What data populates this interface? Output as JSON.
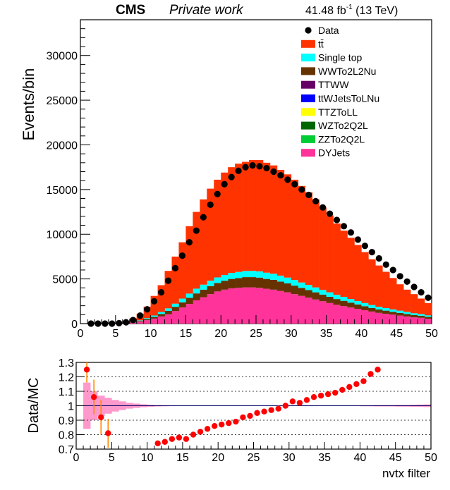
{
  "header": {
    "experiment": "CMS",
    "label": "Private work",
    "lumi_main": "41.48 fb",
    "lumi_exp": "-1",
    "lumi_energy": " (13 TeV)"
  },
  "chart_data": [
    {
      "type": "stacked-histogram",
      "ylabel": "Events/bin",
      "xlim": [
        0,
        50
      ],
      "ylim": [
        0,
        34000
      ],
      "x_ticks": [
        0,
        5,
        10,
        15,
        20,
        25,
        30,
        35,
        40,
        45,
        50
      ],
      "y_ticks": [
        0,
        5000,
        10000,
        15000,
        20000,
        25000,
        30000
      ],
      "legend": {
        "placement": "top-right",
        "entries": [
          {
            "label": "Data",
            "color": "#000000",
            "marker": "dot"
          },
          {
            "label": "tt̄",
            "color": "#ff3300",
            "marker": "box"
          },
          {
            "label": "Single top",
            "color": "#00ffff",
            "marker": "box"
          },
          {
            "label": "WWTo2L2Nu",
            "color": "#663300",
            "marker": "box"
          },
          {
            "label": "TTWW",
            "color": "#660066",
            "marker": "box"
          },
          {
            "label": "ttWJetsToLNu",
            "color": "#0000ff",
            "marker": "box"
          },
          {
            "label": "TTZToLL",
            "color": "#ffff00",
            "marker": "box"
          },
          {
            "label": "WZTo2Q2L",
            "color": "#006600",
            "marker": "box"
          },
          {
            "label": "ZZTo2Q2L",
            "color": "#00cc33",
            "marker": "box"
          },
          {
            "label": "DYJets",
            "color": "#ff3399",
            "marker": "box"
          }
        ]
      },
      "bin_edges": [
        0,
        50
      ],
      "bin_width": 1,
      "stack_order": [
        "DYJets",
        "WWTo2L2Nu",
        "Single top",
        "tt̄"
      ],
      "stack": {
        "DYJets": [
          0,
          0,
          0,
          0,
          0,
          20,
          50,
          110,
          220,
          380,
          560,
          800,
          1040,
          1400,
          1800,
          2200,
          2600,
          2950,
          3300,
          3600,
          3800,
          3950,
          4000,
          4050,
          4050,
          4000,
          3900,
          3800,
          3650,
          3500,
          3300,
          3100,
          2900,
          2700,
          2500,
          2300,
          2100,
          1950,
          1800,
          1650,
          1500,
          1350,
          1200,
          1100,
          1000,
          900,
          800,
          700,
          650,
          550
        ],
        "WWTo2L2Nu": [
          0,
          0,
          0,
          0,
          0,
          5,
          20,
          40,
          80,
          130,
          200,
          280,
          380,
          480,
          580,
          680,
          780,
          850,
          900,
          950,
          1000,
          1050,
          1100,
          1150,
          1150,
          1150,
          1100,
          1100,
          1050,
          1000,
          950,
          900,
          850,
          800,
          750,
          700,
          650,
          600,
          550,
          500,
          450,
          400,
          380,
          350,
          320,
          300,
          280,
          250,
          230,
          200
        ],
        "Single top": [
          0,
          0,
          0,
          0,
          0,
          5,
          10,
          30,
          60,
          100,
          150,
          220,
          290,
          350,
          420,
          480,
          530,
          560,
          600,
          620,
          650,
          670,
          680,
          690,
          700,
          700,
          700,
          680,
          670,
          650,
          630,
          600,
          580,
          550,
          520,
          500,
          470,
          440,
          410,
          380,
          350,
          330,
          310,
          290,
          270,
          250,
          230,
          210,
          190,
          170
        ],
        "tt̄": [
          0,
          0,
          0,
          0,
          30,
          90,
          240,
          420,
          740,
          1290,
          2190,
          3000,
          4190,
          5270,
          6300,
          7540,
          8590,
          9540,
          10300,
          10930,
          11450,
          11830,
          12120,
          12210,
          12400,
          12450,
          12300,
          12120,
          11830,
          11550,
          11220,
          10800,
          10370,
          9850,
          9230,
          8600,
          7980,
          7410,
          6840,
          6270,
          5700,
          5120,
          4610,
          4060,
          3510,
          2950,
          2490,
          2140,
          1730,
          1380
        ]
      },
      "data_points": {
        "x": [
          1.5,
          2.5,
          3.5,
          4.5,
          5.5,
          6.5,
          7.5,
          8.5,
          9.5,
          10.5,
          11.5,
          12.5,
          13.5,
          14.5,
          15.5,
          16.5,
          17.5,
          18.5,
          19.5,
          20.5,
          21.5,
          22.5,
          23.5,
          24.5,
          25.5,
          26.5,
          27.5,
          28.5,
          29.5,
          30.5,
          31.5,
          32.5,
          33.5,
          34.5,
          35.5,
          36.5,
          37.5,
          38.5,
          39.5,
          40.5,
          41.5,
          42.5,
          43.5,
          44.5,
          45.5,
          46.5,
          47.5,
          48.5,
          49.5
        ],
        "y": [
          0,
          0,
          0,
          0,
          50,
          150,
          400,
          900,
          1600,
          2500,
          3500,
          4800,
          6200,
          7600,
          9100,
          10400,
          11900,
          13300,
          14500,
          15600,
          16400,
          17100,
          17500,
          17700,
          17600,
          17400,
          17000,
          16600,
          16100,
          15600,
          15000,
          14400,
          13700,
          13000,
          12300,
          11600,
          10900,
          10200,
          9400,
          8700,
          8000,
          7300,
          6600,
          6000,
          5300,
          4700,
          4100,
          3500,
          2900
        ]
      }
    },
    {
      "type": "ratio",
      "xlabel": "nvtx filter",
      "ylabel": "Data/MC",
      "xlim": [
        0,
        50
      ],
      "ylim": [
        0.7,
        1.3
      ],
      "x_ticks": [
        0,
        5,
        10,
        15,
        20,
        25,
        30,
        35,
        40,
        45,
        50
      ],
      "y_ticks": [
        0.7,
        0.8,
        0.9,
        1,
        1.1,
        1.2,
        1.3
      ],
      "y_tick_labels": [
        "0.7",
        "0.8",
        "0.9",
        "1",
        "1.1",
        "1.2",
        "1.3"
      ],
      "grid": "horizontal dotted",
      "reference_line": 1,
      "uncertainty_band": {
        "color": "#ff99cc",
        "x_left": [
          1,
          2,
          3,
          4,
          5,
          6,
          7,
          8,
          9,
          10,
          11,
          12,
          13,
          14,
          40,
          41,
          42,
          43,
          44,
          45,
          46,
          47,
          48,
          49
        ],
        "halfwidth": [
          0.16,
          0.1,
          0.07,
          0.055,
          0.04,
          0.03,
          0.02,
          0.015,
          0.01,
          0.007,
          0.005,
          0.004,
          0.003,
          0.002,
          0.004,
          0.004,
          0.005,
          0.005,
          0.005,
          0.006,
          0.006,
          0.007,
          0.008,
          0.009
        ]
      },
      "points": {
        "x": [
          1.5,
          2.5,
          3.5,
          4.5,
          11.5,
          12.5,
          13.5,
          14.5,
          15.5,
          16.5,
          17.5,
          18.5,
          19.5,
          20.5,
          21.5,
          22.5,
          23.5,
          24.5,
          25.5,
          26.5,
          27.5,
          28.5,
          29.5,
          30.5,
          31.5,
          32.5,
          33.5,
          34.5,
          35.5,
          36.5,
          37.5,
          38.5,
          39.5,
          40.5,
          41.5,
          42.5
        ],
        "y": [
          1.25,
          1.06,
          0.92,
          0.81,
          0.74,
          0.75,
          0.77,
          0.78,
          0.77,
          0.8,
          0.82,
          0.84,
          0.86,
          0.87,
          0.88,
          0.89,
          0.92,
          0.93,
          0.95,
          0.96,
          0.97,
          0.98,
          1.0,
          1.03,
          1.02,
          1.04,
          1.06,
          1.07,
          1.08,
          1.09,
          1.11,
          1.13,
          1.15,
          1.17,
          1.22,
          1.25
        ],
        "err": [
          0.09,
          0.12,
          0.12,
          0.1,
          0,
          0,
          0,
          0,
          0,
          0,
          0,
          0,
          0,
          0,
          0,
          0,
          0,
          0,
          0,
          0,
          0,
          0,
          0,
          0,
          0,
          0,
          0,
          0,
          0,
          0,
          0,
          0,
          0,
          0,
          0,
          0
        ],
        "color": "#ff0000",
        "err_color": "#ff8800"
      }
    }
  ]
}
